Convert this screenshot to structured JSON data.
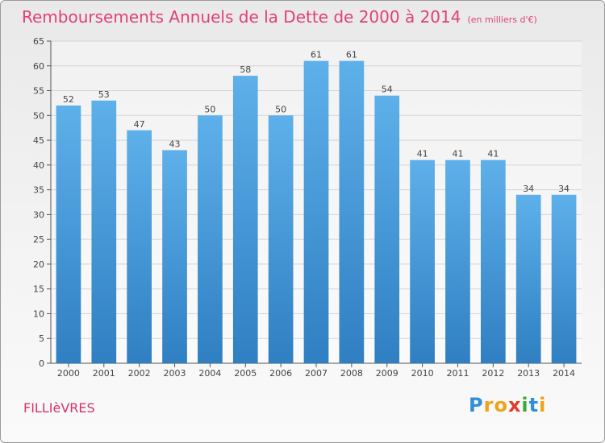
{
  "chart_data": {
    "type": "bar",
    "title": "Remboursements Annuels de la Dette de 2000 à 2014",
    "subtitle": "(en milliers d'€)",
    "categories": [
      "2000",
      "2001",
      "2002",
      "2003",
      "2004",
      "2005",
      "2006",
      "2007",
      "2008",
      "2009",
      "2010",
      "2011",
      "2012",
      "2013",
      "2014"
    ],
    "values": [
      52,
      53,
      47,
      43,
      50,
      58,
      50,
      61,
      61,
      54,
      41,
      41,
      41,
      34,
      34
    ],
    "ylim": [
      0,
      65
    ],
    "yticks": [
      "0",
      "5",
      "10",
      "15",
      "20",
      "25",
      "30",
      "35",
      "40",
      "45",
      "50",
      "55",
      "60",
      "65"
    ],
    "xlabel": "",
    "ylabel": "",
    "grid": true,
    "bar_color": "#4a9bdb"
  },
  "footer": {
    "commune": "FILLIèVRES",
    "logo_letters": [
      {
        "char": "P",
        "color": "#2f8fd8"
      },
      {
        "char": "r",
        "color": "#f0a21a"
      },
      {
        "char": "o",
        "color": "#f0a21a"
      },
      {
        "char": "x",
        "color": "#e43a2a"
      },
      {
        "char": "i",
        "color": "#3aab3a"
      },
      {
        "char": "t",
        "color": "#2f8fd8"
      },
      {
        "char": "i",
        "color": "#f0a21a"
      }
    ]
  }
}
